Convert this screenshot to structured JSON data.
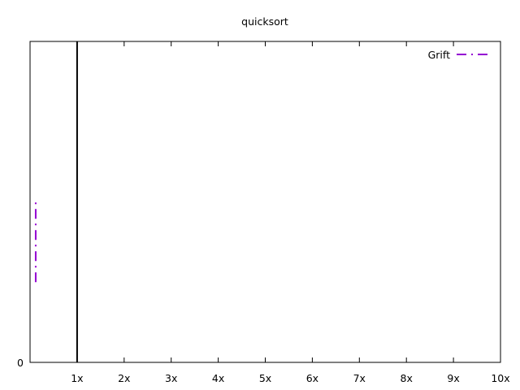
{
  "chart_data": {
    "type": "line",
    "title": "quicksort",
    "xlabel": "",
    "ylabel": "",
    "xlim": [
      0,
      10
    ],
    "ylim": [
      0,
      1
    ],
    "x_ticks": [
      {
        "value": 1,
        "label": "1x"
      },
      {
        "value": 2,
        "label": "2x"
      },
      {
        "value": 3,
        "label": "3x"
      },
      {
        "value": 4,
        "label": "4x"
      },
      {
        "value": 5,
        "label": "5x"
      },
      {
        "value": 6,
        "label": "6x"
      },
      {
        "value": 7,
        "label": "7x"
      },
      {
        "value": 8,
        "label": "8x"
      },
      {
        "value": 9,
        "label": "9x"
      },
      {
        "value": 10,
        "label": "10x"
      }
    ],
    "y_ticks": [
      {
        "value": 0,
        "label": "0"
      }
    ],
    "reference_line": {
      "x": 1,
      "color": "#000000"
    },
    "series": [
      {
        "name": "Grift",
        "color": "#9400d3",
        "dash": "dash-dot",
        "points": [
          [
            0.12,
            0.25
          ],
          [
            0.12,
            0.5
          ]
        ]
      }
    ],
    "legend_position": "top-right",
    "grid": false
  }
}
